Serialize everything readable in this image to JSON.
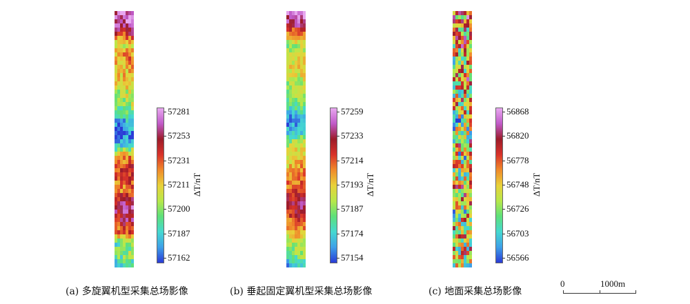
{
  "panels": [
    {
      "caption": "(a) 多旋翼机型采集总场影像",
      "unit": "ΔT/nT",
      "scale_values": [
        "57281",
        "57253",
        "57231",
        "57211",
        "57200",
        "57187",
        "57162"
      ]
    },
    {
      "caption": "(b) 垂起固定翼机型采集总场影像",
      "unit": "ΔT/nT",
      "scale_values": [
        "57259",
        "57233",
        "57214",
        "57193",
        "57187",
        "57174",
        "57154"
      ]
    },
    {
      "caption": "(c) 地面采集总场影像",
      "unit": "ΔT/nT",
      "scale_values": [
        "56868",
        "56820",
        "56778",
        "56748",
        "56726",
        "56703",
        "56566"
      ]
    }
  ],
  "scale_bar": {
    "start_label": "0",
    "end_label": "1000m"
  },
  "colormap": [
    "#2a3bd6",
    "#3ea0e8",
    "#45d8d0",
    "#5ee07a",
    "#b8e84a",
    "#e8d13a",
    "#f08a2a",
    "#d8322a",
    "#9c1c2a",
    "#c05ac8",
    "#e8a8f0"
  ]
}
